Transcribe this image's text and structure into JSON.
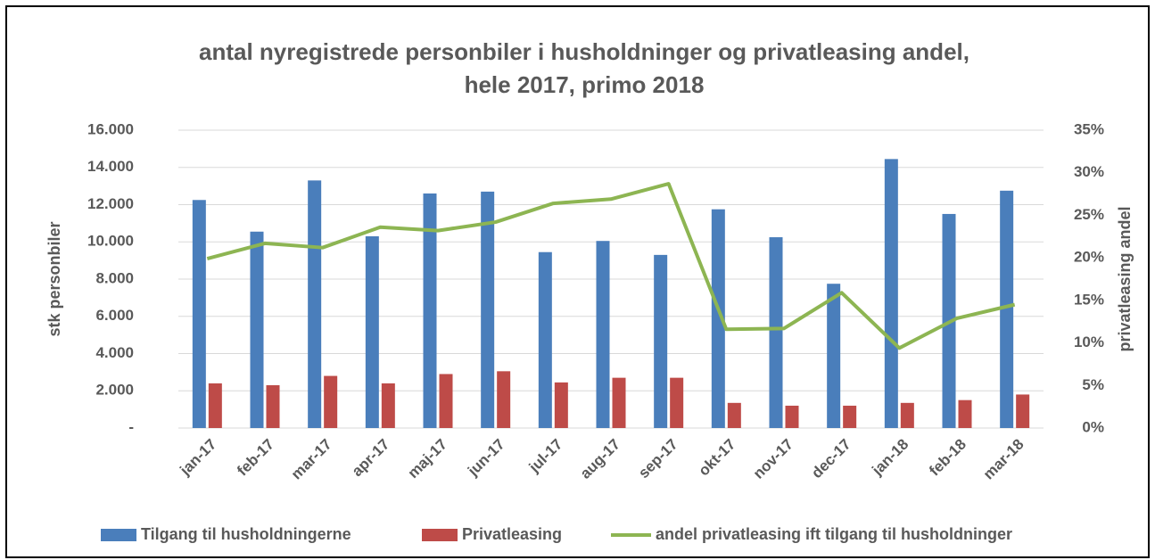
{
  "chart_data": {
    "type": "bar",
    "title": "antal nyregistrede personbiler i husholdninger og privatleasing andel,",
    "subtitle": "hele 2017, primo 2018",
    "y_label": "stk personbiler",
    "y2_label": "privatleasing andel",
    "categories": [
      "jan-17",
      "feb-17",
      "mar-17",
      "apr-17",
      "maj-17",
      "jun-17",
      "jul-17",
      "aug-17",
      "sep-17",
      "okt-17",
      "nov-17",
      "dec-17",
      "jan-18",
      "feb-18",
      "mar-18"
    ],
    "series": [
      {
        "name": "Tilgang til husholdningerne",
        "type": "bar",
        "color": "#4a7ebb",
        "values": [
          12250,
          10550,
          13300,
          10300,
          12600,
          12700,
          9450,
          10050,
          9300,
          11750,
          10250,
          7750,
          14450,
          11500,
          12750
        ]
      },
      {
        "name": "Privatleasing",
        "type": "bar",
        "color": "#be4b48",
        "values": [
          2400,
          2300,
          2800,
          2400,
          2900,
          3050,
          2450,
          2700,
          2700,
          1350,
          1200,
          1200,
          1350,
          1500,
          1800
        ]
      },
      {
        "name": "andel privatleasing ift tilgang til husholdninger",
        "type": "line",
        "axis": "y2",
        "color": "#8db552",
        "values": [
          19.9,
          21.7,
          21.2,
          23.6,
          23.2,
          24.2,
          26.4,
          26.9,
          28.7,
          11.6,
          11.7,
          15.9,
          9.4,
          12.9,
          14.5
        ]
      }
    ],
    "ylim": [
      0,
      16000
    ],
    "yticks": [
      {
        "value": 0,
        "label": "-"
      },
      {
        "value": 2000,
        "label": "2.000"
      },
      {
        "value": 4000,
        "label": "4.000"
      },
      {
        "value": 6000,
        "label": "6.000"
      },
      {
        "value": 8000,
        "label": "8.000"
      },
      {
        "value": 10000,
        "label": "10.000"
      },
      {
        "value": 12000,
        "label": "12.000"
      },
      {
        "value": 14000,
        "label": "14.000"
      },
      {
        "value": 16000,
        "label": "16.000"
      }
    ],
    "y2lim": [
      0,
      35
    ],
    "y2ticks": [
      {
        "value": 0,
        "label": "0%"
      },
      {
        "value": 5,
        "label": "5%"
      },
      {
        "value": 10,
        "label": "10%"
      },
      {
        "value": 15,
        "label": "15%"
      },
      {
        "value": 20,
        "label": "20%"
      },
      {
        "value": 25,
        "label": "25%"
      },
      {
        "value": 30,
        "label": "30%"
      },
      {
        "value": 35,
        "label": "35%"
      }
    ],
    "grid": true,
    "legend": "bottom"
  }
}
